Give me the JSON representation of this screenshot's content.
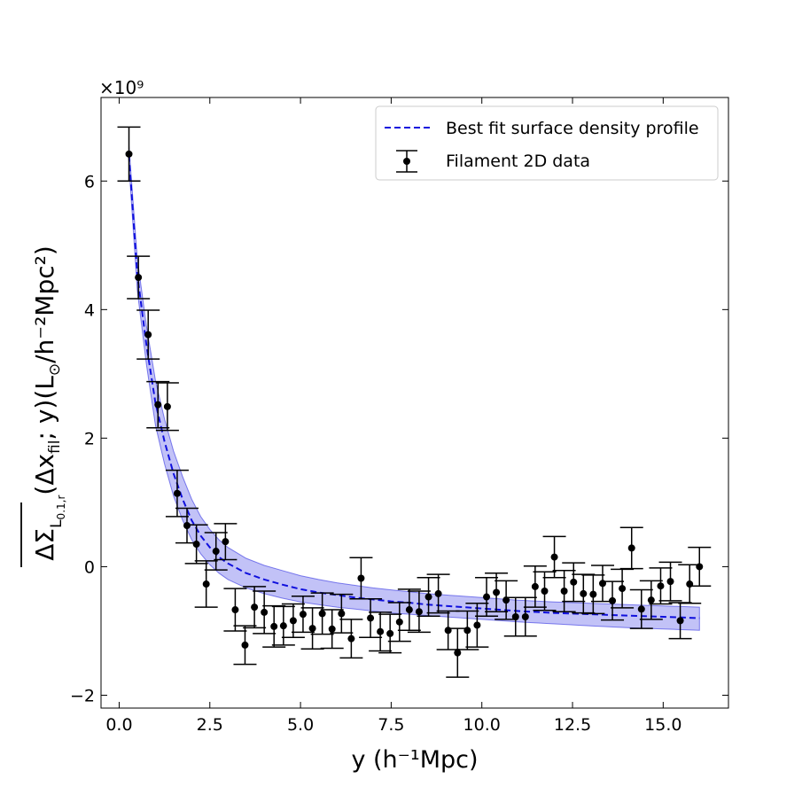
{
  "chart_data": {
    "type": "scatter",
    "title": "",
    "xlabel": "y (h⁻¹Mpc)",
    "ylabel_parts": {
      "main": "ΔΣ",
      "sub_prefix": "L",
      "sub_detail": "0.1,r",
      "args": "(Δx",
      "args_sub": "fil",
      "args_end": "; y)(L",
      "sun": "⊙",
      "units": "/h⁻²Mpc²)"
    },
    "y_multiplier": "×10⁹",
    "xlim": [
      -0.5,
      16.8
    ],
    "ylim": [
      -2.2,
      7.3
    ],
    "xticks": [
      0.0,
      2.5,
      5.0,
      7.5,
      10.0,
      12.5,
      15.0
    ],
    "xtick_labels": [
      "0.0",
      "2.5",
      "5.0",
      "7.5",
      "10.0",
      "12.5",
      "15.0"
    ],
    "yticks": [
      -2,
      0,
      2,
      4,
      6
    ],
    "ytick_labels": [
      "−2",
      "0",
      "2",
      "4",
      "6"
    ],
    "legend": {
      "position": "top-right",
      "entries": [
        "Best fit surface density profile",
        "Filament 2D data"
      ]
    },
    "series": [
      {
        "name": "Filament 2D data",
        "kind": "errorbar",
        "x": [
          0.27,
          0.53,
          0.8,
          1.07,
          1.33,
          1.6,
          1.87,
          2.13,
          2.4,
          2.67,
          2.93,
          3.2,
          3.47,
          3.73,
          4.0,
          4.27,
          4.53,
          4.8,
          5.07,
          5.33,
          5.6,
          5.87,
          6.13,
          6.4,
          6.67,
          6.93,
          7.2,
          7.47,
          7.73,
          8.0,
          8.27,
          8.53,
          8.8,
          9.07,
          9.33,
          9.6,
          9.87,
          10.13,
          10.4,
          10.67,
          10.93,
          11.2,
          11.47,
          11.73,
          12.0,
          12.27,
          12.53,
          12.8,
          13.07,
          13.33,
          13.6,
          13.87,
          14.13,
          14.4,
          14.67,
          14.93,
          15.2,
          15.47,
          15.73,
          16.0
        ],
        "y": [
          6.42,
          4.5,
          3.61,
          2.52,
          2.49,
          1.14,
          0.64,
          0.35,
          -0.27,
          0.24,
          0.39,
          -0.67,
          -1.22,
          -0.63,
          -0.71,
          -0.93,
          -0.92,
          -0.84,
          -0.74,
          -0.96,
          -0.73,
          -0.97,
          -0.73,
          -1.12,
          -0.18,
          -0.8,
          -1.01,
          -1.04,
          -0.86,
          -0.67,
          -0.7,
          -0.47,
          -0.42,
          -0.99,
          -1.34,
          -0.99,
          -0.91,
          -0.47,
          -0.4,
          -0.52,
          -0.78,
          -0.78,
          -0.31,
          -0.38,
          0.15,
          -0.38,
          -0.24,
          -0.42,
          -0.43,
          -0.26,
          -0.53,
          -0.34,
          0.29,
          -0.66,
          -0.52,
          -0.3,
          -0.23,
          -0.84,
          -0.27,
          0.0
        ],
        "yerr": [
          0.42,
          0.33,
          0.38,
          0.36,
          0.37,
          0.36,
          0.27,
          0.3,
          0.36,
          0.29,
          0.28,
          0.33,
          0.3,
          0.32,
          0.33,
          0.32,
          0.3,
          0.26,
          0.28,
          0.32,
          0.32,
          0.3,
          0.3,
          0.3,
          0.32,
          0.3,
          0.3,
          0.3,
          0.3,
          0.32,
          0.32,
          0.3,
          0.3,
          0.3,
          0.38,
          0.3,
          0.34,
          0.3,
          0.3,
          0.3,
          0.3,
          0.3,
          0.32,
          0.3,
          0.32,
          0.32,
          0.3,
          0.3,
          0.3,
          0.28,
          0.3,
          0.3,
          0.32,
          0.3,
          0.3,
          0.28,
          0.3,
          0.28,
          0.3,
          0.3
        ]
      },
      {
        "name": "Best fit surface density profile",
        "kind": "line",
        "style": "dashed",
        "color": "#1010dd",
        "band_color": "#7777ee",
        "x": [
          0.27,
          0.5,
          0.75,
          1.0,
          1.25,
          1.5,
          1.75,
          2.0,
          2.25,
          2.5,
          2.75,
          3.0,
          3.5,
          4.0,
          4.5,
          5.0,
          5.5,
          6.0,
          6.5,
          7.0,
          7.5,
          8.0,
          8.5,
          9.0,
          10.0,
          11.0,
          12.0,
          13.0,
          14.0,
          15.0,
          16.0
        ],
        "y": [
          6.4,
          4.55,
          3.45,
          2.55,
          1.95,
          1.45,
          1.05,
          0.72,
          0.48,
          0.3,
          0.15,
          0.05,
          -0.1,
          -0.2,
          -0.28,
          -0.35,
          -0.4,
          -0.44,
          -0.48,
          -0.51,
          -0.54,
          -0.56,
          -0.59,
          -0.61,
          -0.65,
          -0.69,
          -0.72,
          -0.74,
          -0.76,
          -0.78,
          -0.8
        ],
        "band_lower": [
          6.25,
          4.3,
          3.15,
          2.2,
          1.6,
          1.1,
          0.72,
          0.42,
          0.2,
          0.03,
          -0.1,
          -0.2,
          -0.33,
          -0.42,
          -0.49,
          -0.55,
          -0.59,
          -0.63,
          -0.66,
          -0.69,
          -0.72,
          -0.74,
          -0.76,
          -0.78,
          -0.82,
          -0.86,
          -0.89,
          -0.92,
          -0.95,
          -0.97,
          -0.99
        ],
        "band_upper": [
          6.55,
          4.8,
          3.75,
          2.9,
          2.3,
          1.8,
          1.4,
          1.05,
          0.78,
          0.58,
          0.42,
          0.3,
          0.13,
          0.02,
          -0.06,
          -0.14,
          -0.2,
          -0.25,
          -0.29,
          -0.33,
          -0.36,
          -0.39,
          -0.42,
          -0.44,
          -0.48,
          -0.52,
          -0.55,
          -0.57,
          -0.59,
          -0.61,
          -0.63
        ]
      }
    ]
  }
}
